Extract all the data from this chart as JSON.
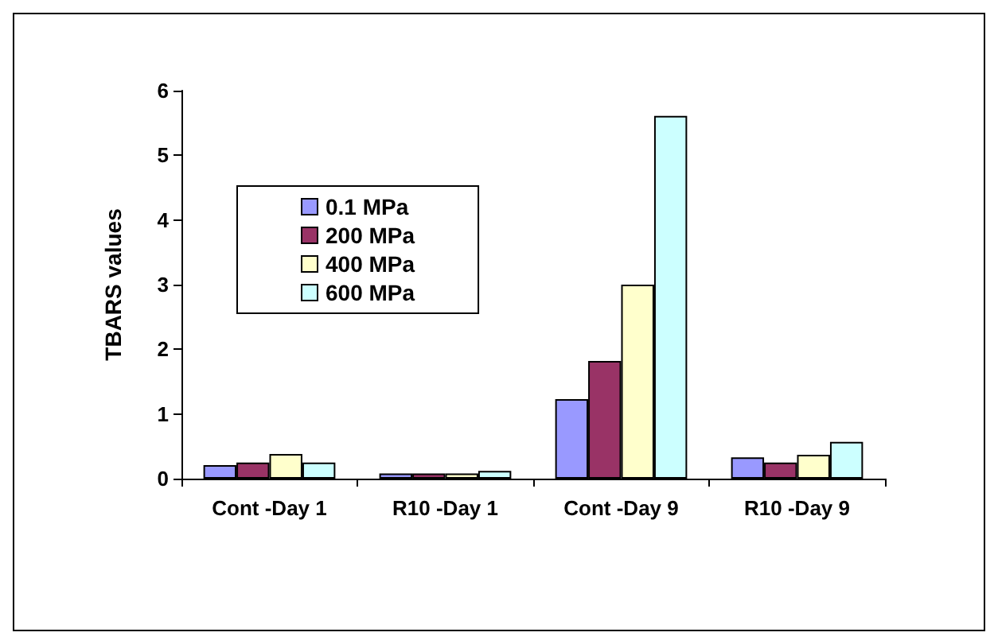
{
  "chart_data": {
    "type": "bar",
    "ylabel": "TBARS values",
    "categories": [
      "Cont -Day 1",
      "R10 -Day 1",
      "Cont -Day 9",
      "R10 -Day 9"
    ],
    "series": [
      {
        "name": "0.1 MPa",
        "color": "#9999ff",
        "values": [
          0.21,
          0.08,
          1.23,
          0.33
        ]
      },
      {
        "name": "200 MPa",
        "color": "#993366",
        "values": [
          0.25,
          0.08,
          1.82,
          0.25
        ]
      },
      {
        "name": "400 MPa",
        "color": "#ffffcc",
        "values": [
          0.38,
          0.08,
          3.0,
          0.37
        ]
      },
      {
        "name": "600 MPa",
        "color": "#ccffff",
        "values": [
          0.25,
          0.12,
          5.61,
          0.57
        ]
      }
    ],
    "ylim": [
      0,
      6
    ],
    "yticks": [
      0,
      1,
      2,
      3,
      4,
      5,
      6
    ],
    "grid": false,
    "legend": "top left"
  }
}
